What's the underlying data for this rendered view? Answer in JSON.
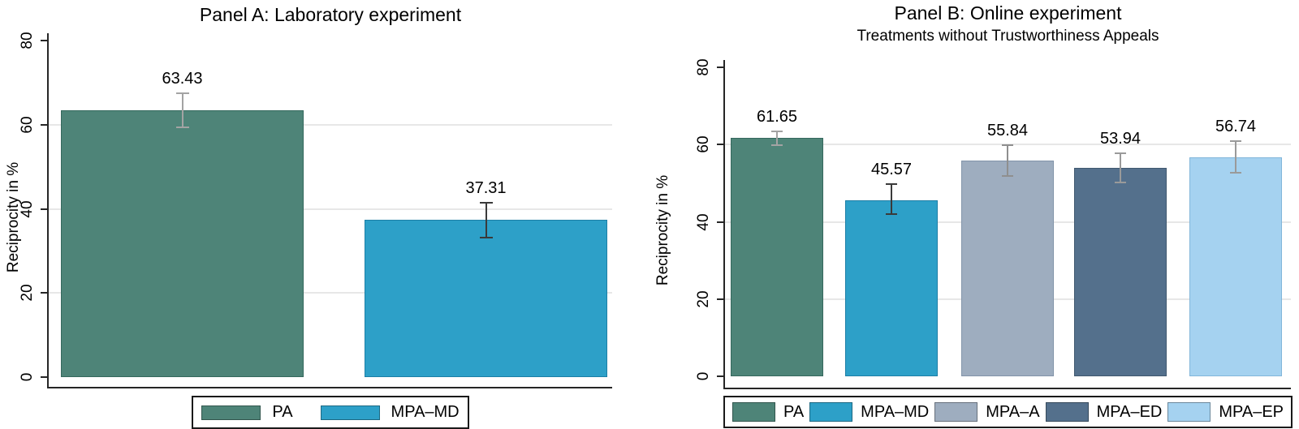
{
  "figure_title": "Reciprocity by treatment, two-panel bar chart",
  "chart_data": [
    {
      "type": "bar",
      "panel": "A",
      "title": "Panel A: Laboratory experiment",
      "subtitle": "",
      "ylabel": "Reciprocity in %",
      "ylim": [
        0,
        80
      ],
      "yticks": [
        0,
        20,
        40,
        60,
        80
      ],
      "gridlines": [
        20,
        40,
        60
      ],
      "grid": "on",
      "legend_position": "bottom",
      "categories": [
        "PA",
        "MPA–MD"
      ],
      "values": [
        63.43,
        37.31
      ],
      "value_labels": [
        "63.43",
        "37.31"
      ],
      "error_low": [
        59.2,
        33.0
      ],
      "error_high": [
        67.7,
        41.6
      ],
      "bar_colors": [
        "#4E8478",
        "#2DA0C8"
      ],
      "bar_border_colors": [
        "#35685D",
        "#1D7FA6"
      ],
      "error_colors": [
        "#A3A3A3",
        "#3A3A3A"
      ],
      "legend": [
        {
          "label": "PA",
          "color": "#4E8478"
        },
        {
          "label": "MPA–MD",
          "color": "#2DA0C8"
        }
      ]
    },
    {
      "type": "bar",
      "panel": "B",
      "title": "Panel B: Online experiment",
      "subtitle": "Treatments without Trustworthiness Appeals",
      "ylabel": "Reciprocity in %",
      "ylim": [
        0,
        80
      ],
      "yticks": [
        0,
        20,
        40,
        60,
        80
      ],
      "gridlines": [
        20,
        40,
        60
      ],
      "grid": "on",
      "legend_position": "bottom",
      "categories": [
        "PA",
        "MPA–MD",
        "MPA–A",
        "MPA–ED",
        "MPA–EP"
      ],
      "values": [
        61.65,
        45.57,
        55.84,
        53.94,
        56.74
      ],
      "value_labels": [
        "61.65",
        "45.57",
        "55.84",
        "53.94",
        "56.74"
      ],
      "error_low": [
        59.7,
        41.7,
        51.6,
        50.0,
        52.5
      ],
      "error_high": [
        63.6,
        50.0,
        60.1,
        57.9,
        61.0
      ],
      "bar_colors": [
        "#4E8478",
        "#2DA0C8",
        "#9EADBF",
        "#54708C",
        "#A5D2F0"
      ],
      "bar_border_colors": [
        "#35685D",
        "#1D7FA6",
        "#8294A9",
        "#40586F",
        "#82B6DA"
      ],
      "error_colors": [
        "#A3A3A3",
        "#3A3A3A",
        "#8F8F8F",
        "#9A9A9A",
        "#9A9A9A"
      ],
      "legend": [
        {
          "label": "PA",
          "color": "#4E8478"
        },
        {
          "label": "MPA–MD",
          "color": "#2DA0C8"
        },
        {
          "label": "MPA–A",
          "color": "#9EADBF"
        },
        {
          "label": "MPA–ED",
          "color": "#54708C"
        },
        {
          "label": "MPA–EP",
          "color": "#A5D2F0"
        }
      ]
    }
  ]
}
